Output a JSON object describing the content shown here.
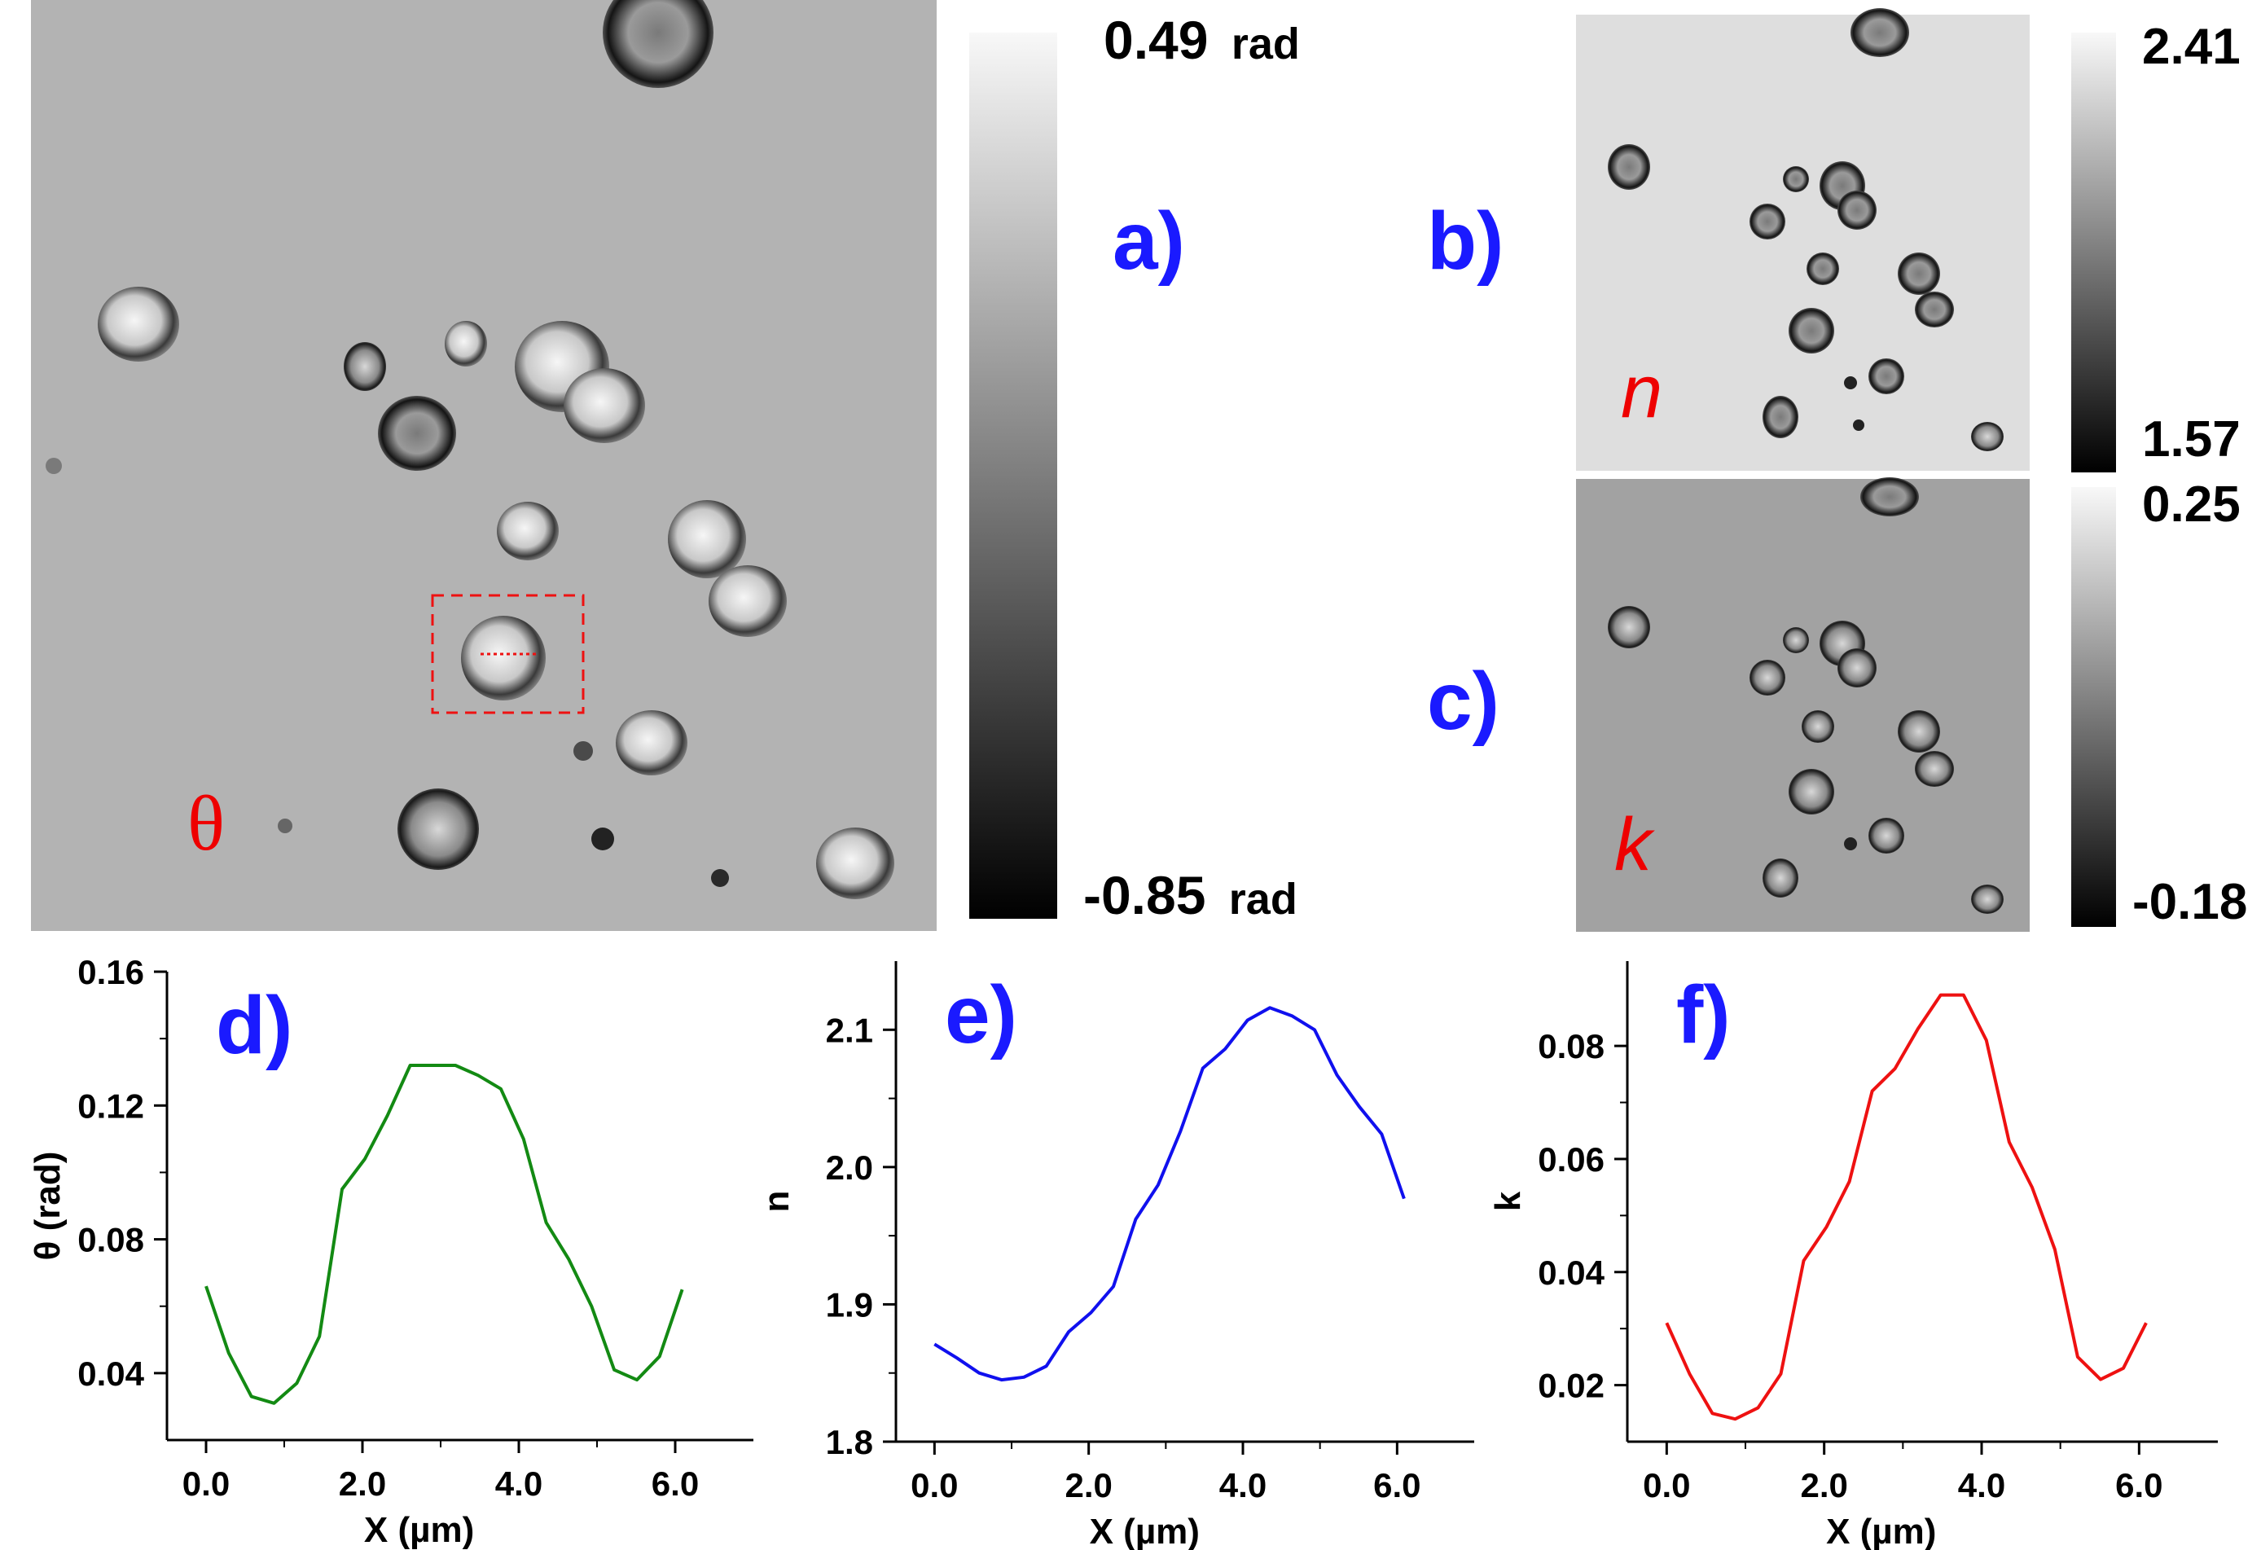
{
  "panels": {
    "a": {
      "letter": "a)",
      "symbol": "θ",
      "colorbar": {
        "max_value": "0.49",
        "max_unit": "rad",
        "min_value": "-0.85",
        "min_unit": "rad"
      }
    },
    "b": {
      "letter": "b)",
      "symbol": "n",
      "colorbar": {
        "max_value": "2.41",
        "min_value": "1.57"
      }
    },
    "c": {
      "letter": "c)",
      "symbol": "k",
      "colorbar": {
        "max_value": "0.25",
        "min_value": "-0.18"
      }
    }
  },
  "colors": {
    "letter": "#1a1aff",
    "symbol": "#ee0000",
    "roi": "#ee1111",
    "theta_line": "#138a13",
    "n_line": "#1010ee",
    "k_line": "#ee1111"
  },
  "chart_data": [
    {
      "type": "line",
      "panel_letter": "d)",
      "xlabel": "X (µm)",
      "ylabel": "θ (rad)",
      "xlim": [
        -0.5,
        7.0
      ],
      "ylim": [
        0.02,
        0.16
      ],
      "xticks": [
        0.0,
        2.0,
        4.0,
        6.0
      ],
      "xtick_labels": [
        "0.0",
        "2.0",
        "4.0",
        "6.0"
      ],
      "yticks": [
        0.04,
        0.08,
        0.12,
        0.16
      ],
      "ytick_labels": [
        "0.04",
        "0.08",
        "0.12",
        "0.16"
      ],
      "x": [
        0.0,
        0.29,
        0.58,
        0.87,
        1.16,
        1.45,
        1.74,
        2.03,
        2.32,
        2.61,
        2.9,
        3.19,
        3.48,
        3.77,
        4.06,
        4.35,
        4.64,
        4.93,
        5.22,
        5.51,
        5.8,
        6.09
      ],
      "y": [
        0.066,
        0.046,
        0.033,
        0.031,
        0.037,
        0.051,
        0.095,
        0.104,
        0.117,
        0.132,
        0.132,
        0.132,
        0.129,
        0.125,
        0.11,
        0.085,
        0.074,
        0.06,
        0.041,
        0.038,
        0.045,
        0.065
      ]
    },
    {
      "type": "line",
      "panel_letter": "e)",
      "xlabel": "X (µm)",
      "ylabel": "n",
      "xlim": [
        -0.5,
        7.0
      ],
      "ylim": [
        1.8,
        2.15
      ],
      "xticks": [
        0.0,
        2.0,
        4.0,
        6.0
      ],
      "xtick_labels": [
        "0.0",
        "2.0",
        "4.0",
        "6.0"
      ],
      "yticks": [
        1.8,
        1.9,
        2.0,
        2.1
      ],
      "ytick_labels": [
        "1.8",
        "1.9",
        "2.0",
        "2.1"
      ],
      "x": [
        0.0,
        0.29,
        0.58,
        0.87,
        1.16,
        1.45,
        1.74,
        2.03,
        2.32,
        2.61,
        2.9,
        3.19,
        3.48,
        3.77,
        4.06,
        4.35,
        4.64,
        4.93,
        5.22,
        5.51,
        5.8,
        6.09
      ],
      "y": [
        1.871,
        1.861,
        1.85,
        1.845,
        1.847,
        1.855,
        1.88,
        1.894,
        1.913,
        1.962,
        1.987,
        2.026,
        2.072,
        2.086,
        2.107,
        2.116,
        2.11,
        2.1,
        2.067,
        2.044,
        2.024,
        1.977
      ]
    },
    {
      "type": "line",
      "panel_letter": "f)",
      "xlabel": "X (µm)",
      "ylabel": "k",
      "xlim": [
        -0.5,
        7.0
      ],
      "ylim": [
        0.01,
        0.095
      ],
      "xticks": [
        0.0,
        2.0,
        4.0,
        6.0
      ],
      "xtick_labels": [
        "0.0",
        "2.0",
        "4.0",
        "6.0"
      ],
      "yticks": [
        0.02,
        0.04,
        0.06,
        0.08
      ],
      "ytick_labels": [
        "0.02",
        "0.04",
        "0.06",
        "0.08"
      ],
      "x": [
        0.0,
        0.29,
        0.58,
        0.87,
        1.16,
        1.45,
        1.74,
        2.03,
        2.32,
        2.61,
        2.9,
        3.19,
        3.48,
        3.77,
        4.06,
        4.35,
        4.64,
        4.93,
        5.22,
        5.51,
        5.8,
        6.09
      ],
      "y": [
        0.031,
        0.022,
        0.015,
        0.014,
        0.016,
        0.022,
        0.042,
        0.048,
        0.056,
        0.072,
        0.076,
        0.083,
        0.089,
        0.089,
        0.081,
        0.063,
        0.055,
        0.044,
        0.025,
        0.021,
        0.023,
        0.031
      ]
    }
  ]
}
